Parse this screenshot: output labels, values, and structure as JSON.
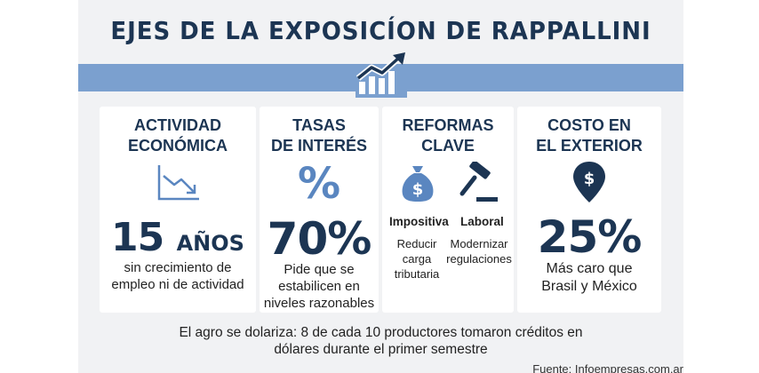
{
  "title": "EJES DE LA EXPOSICÍON DE RAPPALLINI",
  "cards": {
    "actividad": {
      "heading_1": "ACTIVIDAD",
      "heading_2": "ECONÓMICA",
      "big_number": "15",
      "big_unit": "AÑOS",
      "desc_1": "sin crecimiento de",
      "desc_2": "empleo ni de actividad"
    },
    "tasas": {
      "heading_1": "TASAS",
      "heading_2": "DE INTERÉS",
      "symbol": "%",
      "big_value": "70%",
      "desc_1": "Pide que se",
      "desc_2": "estabilicen en",
      "desc_3": "niveles razonables"
    },
    "reformas": {
      "heading_1": "REFORMAS",
      "heading_2": "CLAVE",
      "left_label": "Impositiva",
      "right_label": "Laboral",
      "left_desc_1": "Reducir",
      "left_desc_2": "carga",
      "left_desc_3": "tributaria",
      "right_desc_1": "Modernizar",
      "right_desc_2": "regulaciones"
    },
    "costo": {
      "heading_1": "COSTO EN",
      "heading_2": "EL EXTERIOR",
      "big_value": "25%",
      "desc_1": "Más caro que",
      "desc_2": "Brasil y México"
    }
  },
  "footer": {
    "line_1": "El agro se dolariza: 8 de cada 10 productores tomaron créditos en",
    "line_2": "dólares durante el primer semestre"
  },
  "source": "Fuente: Infoempresas.com.ar",
  "colors": {
    "navy": "#1c3553",
    "band": "#7ba0cf",
    "accent": "#5a86c0"
  }
}
